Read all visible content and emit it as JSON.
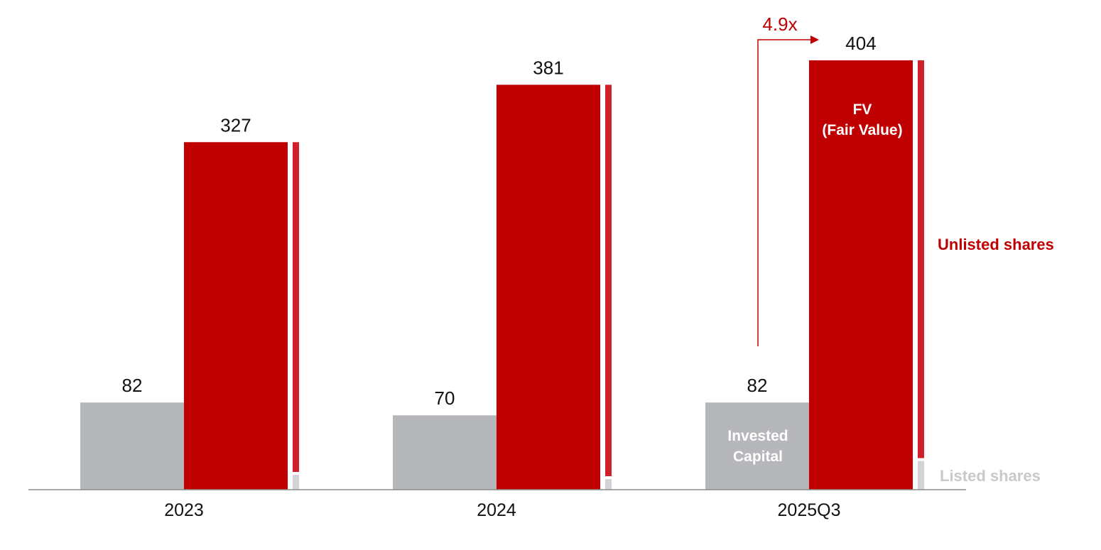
{
  "chart_data": {
    "type": "bar",
    "categories": [
      "2023",
      "2024",
      "2025Q3"
    ],
    "series": [
      {
        "name": "Invested Capital",
        "values": [
          82,
          70,
          82
        ]
      },
      {
        "name": "FV (Fair Value)",
        "values": [
          327,
          381,
          404
        ]
      }
    ],
    "fv_breakdown": {
      "unlisted_shares": [
        313,
        371,
        377
      ],
      "listed_shares": [
        14,
        10,
        27
      ]
    },
    "ylim": [
      0,
      404
    ],
    "multiplier_annotation": "4.9x",
    "labels": {
      "invested_capital_line1": "Invested",
      "invested_capital_line2": "Capital",
      "fv_line1": "FV",
      "fv_line2": "(Fair Value)",
      "unlisted": "Unlisted shares",
      "listed": "Listed shares"
    },
    "colors": {
      "invested": "#b6b7bb",
      "fv": "#c00000",
      "unlisted_strip": "#d0212a",
      "listed_strip": "#d2d3d6",
      "axis": "#8a8a8a"
    }
  }
}
